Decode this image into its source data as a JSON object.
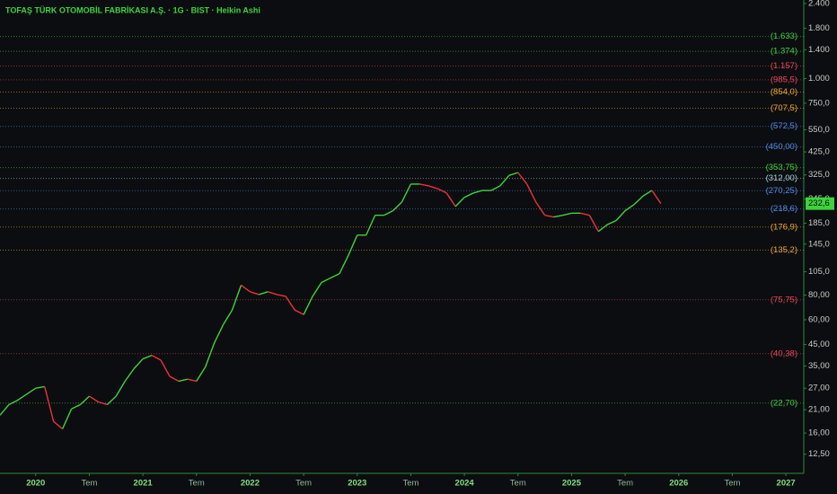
{
  "chart_data": {
    "type": "line",
    "title": "TOFAŞ TÜRK OTOMOBİL FABRİKASI A.Ş. · 1G · BIST · Heikin Ashi",
    "log_scale": true,
    "up_color": "#3bd43b",
    "down_color": "#e8333a",
    "x": [
      "2019-09",
      "2019-10",
      "2019-11",
      "2019-12",
      "2020-01",
      "2020-02",
      "2020-03",
      "2020-04",
      "2020-05",
      "2020-06",
      "2020-07",
      "2020-08",
      "2020-09",
      "2020-10",
      "2020-11",
      "2020-12",
      "2021-01",
      "2021-02",
      "2021-03",
      "2021-04",
      "2021-05",
      "2021-06",
      "2021-07",
      "2021-08",
      "2021-09",
      "2021-10",
      "2021-11",
      "2021-12",
      "2022-01",
      "2022-02",
      "2022-03",
      "2022-04",
      "2022-05",
      "2022-06",
      "2022-07",
      "2022-08",
      "2022-09",
      "2022-10",
      "2022-11",
      "2022-12",
      "2023-01",
      "2023-02",
      "2023-03",
      "2023-04",
      "2023-05",
      "2023-06",
      "2023-07",
      "2023-08",
      "2023-09",
      "2023-10",
      "2023-11",
      "2023-12",
      "2024-01",
      "2024-02",
      "2024-03",
      "2024-04",
      "2024-05",
      "2024-06",
      "2024-07",
      "2024-08",
      "2024-09",
      "2024-10",
      "2024-11",
      "2024-12",
      "2025-01",
      "2025-02",
      "2025-03",
      "2025-04",
      "2025-05",
      "2025-06",
      "2025-07",
      "2025-08",
      "2025-09",
      "2025-10",
      "2025-11"
    ],
    "values": [
      19.7,
      22.3,
      23.5,
      25.2,
      27,
      27.5,
      18.3,
      16.8,
      21.2,
      22.3,
      24.6,
      23,
      22.3,
      24.6,
      29.3,
      33.9,
      38,
      39.6,
      37.5,
      31,
      29.3,
      30,
      29.3,
      34.6,
      45.8,
      56.7,
      67.2,
      89.8,
      83.2,
      80.5,
      83.2,
      80.5,
      78.8,
      67.2,
      63.7,
      78.8,
      92.7,
      97.6,
      102.6,
      126.8,
      161,
      161,
      203,
      203,
      214,
      237,
      292,
      292,
      286,
      277,
      263,
      225,
      250,
      263,
      271,
      271,
      286,
      323,
      334,
      292,
      237,
      203,
      199,
      203,
      208,
      208,
      203,
      168,
      182,
      191,
      214,
      230,
      254,
      271,
      232.6
    ],
    "xlim": [
      "2019-09",
      "2027-03"
    ],
    "xticks": [
      {
        "value": "2020-01",
        "label": "2020"
      },
      {
        "value": "2020-07",
        "label": "Tem"
      },
      {
        "value": "2021-01",
        "label": "2021"
      },
      {
        "value": "2021-07",
        "label": "Tem"
      },
      {
        "value": "2022-01",
        "label": "2022"
      },
      {
        "value": "2022-07",
        "label": "Tem"
      },
      {
        "value": "2023-01",
        "label": "2023"
      },
      {
        "value": "2023-07",
        "label": "Tem"
      },
      {
        "value": "2024-01",
        "label": "2024"
      },
      {
        "value": "2024-07",
        "label": "Tem"
      },
      {
        "value": "2025-01",
        "label": "2025"
      },
      {
        "value": "2025-07",
        "label": "Tem"
      },
      {
        "value": "2026-01",
        "label": "2026"
      },
      {
        "value": "2026-07",
        "label": "Tem"
      },
      {
        "value": "2027-01",
        "label": "2027"
      }
    ],
    "ylim": [
      10,
      2500
    ],
    "yticks": [
      {
        "value": 2400,
        "label": "2.400"
      },
      {
        "value": 1800,
        "label": "1.800"
      },
      {
        "value": 1400,
        "label": "1.400"
      },
      {
        "value": 1000,
        "label": "1.000"
      },
      {
        "value": 750,
        "label": "750,0"
      },
      {
        "value": 550,
        "label": "550,0"
      },
      {
        "value": 425,
        "label": "425,0"
      },
      {
        "value": 325,
        "label": "325,0"
      },
      {
        "value": 245,
        "label": "245,0"
      },
      {
        "value": 185,
        "label": "185,0"
      },
      {
        "value": 145,
        "label": "145,0"
      },
      {
        "value": 105,
        "label": "105,0"
      },
      {
        "value": 80,
        "label": "80,00"
      },
      {
        "value": 60,
        "label": "60,00"
      },
      {
        "value": 45,
        "label": "45,00"
      },
      {
        "value": 35,
        "label": "35,00"
      },
      {
        "value": 27,
        "label": "27,00"
      },
      {
        "value": 21,
        "label": "21,00"
      },
      {
        "value": 16,
        "label": "16,00"
      },
      {
        "value": 12.5,
        "label": "12,50"
      }
    ],
    "levels": [
      {
        "value": 1633,
        "label": "(1.633)",
        "color": "#3bd43b"
      },
      {
        "value": 1374,
        "label": "(1.374)",
        "color": "#3bd43b"
      },
      {
        "value": 1157,
        "label": "(1.157)",
        "color": "#e8485a"
      },
      {
        "value": 985.5,
        "label": "(985,5)",
        "color": "#e8485a"
      },
      {
        "value": 854.0,
        "label": "(854,0)",
        "color": "#f0a830"
      },
      {
        "value": 707.5,
        "label": "(707,5)",
        "color": "#f0a830"
      },
      {
        "value": 572.5,
        "label": "(572,5)",
        "color": "#4a8fe8"
      },
      {
        "value": 450.0,
        "label": "(450,00)",
        "color": "#4a8fe8"
      },
      {
        "value": 353.75,
        "label": "(353,75)",
        "color": "#3bd43b"
      },
      {
        "value": 312.0,
        "label": "(312,00)",
        "color": "#9fd4e0"
      },
      {
        "value": 270.25,
        "label": "(270,25)",
        "color": "#4a8fe8"
      },
      {
        "value": 218.6,
        "label": "(218,6)",
        "color": "#4a8fe8"
      },
      {
        "value": 176.9,
        "label": "(176,9)",
        "color": "#f0a830"
      },
      {
        "value": 135.2,
        "label": "(135,2)",
        "color": "#f0a830"
      },
      {
        "value": 75.75,
        "label": "(75,75)",
        "color": "#e8485a"
      },
      {
        "value": 40.38,
        "label": "(40,38)",
        "color": "#e8485a"
      },
      {
        "value": 22.7,
        "label": "(22,70)",
        "color": "#3bd43b"
      }
    ],
    "last_price": {
      "value": 232.6,
      "label": "232,6"
    }
  }
}
